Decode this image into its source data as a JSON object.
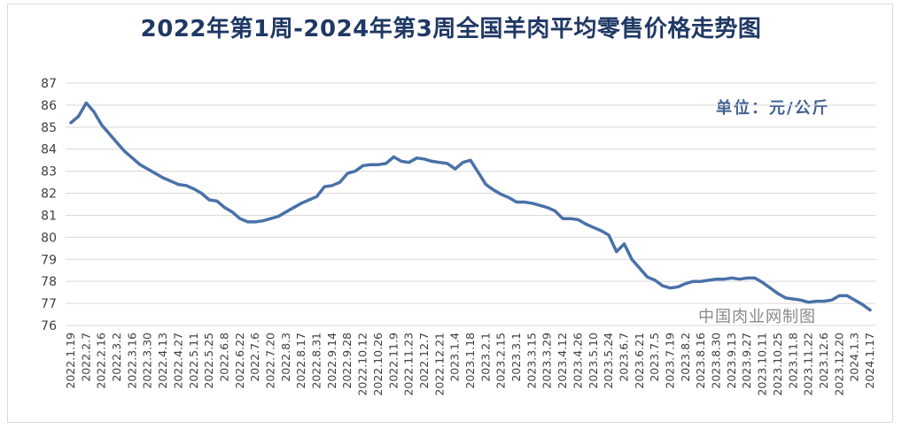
{
  "chart_data": {
    "type": "line",
    "title": "2022年第1周-2024年第3周全国羊肉平均零售价格走势图",
    "unit_label": "单位：元/公斤",
    "source_label": "中国肉业网制图",
    "ylim": [
      76,
      87
    ],
    "y_ticks": [
      76,
      77,
      78,
      79,
      80,
      81,
      82,
      83,
      84,
      85,
      86,
      87
    ],
    "grid": true,
    "x_tick_labels": [
      "2022.1.19",
      "2022.2.7",
      "2022.2.16",
      "2022.3.2",
      "2022.3.16",
      "2022.3.30",
      "2022.4.13",
      "2022.4.27",
      "2022.5.11",
      "2022.5.25",
      "2022.6.8",
      "2022.6.22",
      "2022.7.6",
      "2022.7.20",
      "2022.8.3",
      "2022.8.17",
      "2022.8.31",
      "2022.9.14",
      "2022.9.28",
      "2022.10.12",
      "2022.10.26",
      "2022.11.9",
      "2022.11.23",
      "2022.12.7",
      "2022.12.21",
      "2023.1.4",
      "2023.1.18",
      "2023.2.1",
      "2023.2.15",
      "2023.3.1",
      "2023.3.15",
      "2023.3.29",
      "2023.4.12",
      "2023.4.26",
      "2023.5.10",
      "2023.5.24",
      "2023.6.7",
      "2023.6.21",
      "2023.7.5",
      "2023.7.19",
      "2023.8.2",
      "2023.8.16",
      "2023.8.30",
      "2023.9.13",
      "2023.9.27",
      "2023.10.11",
      "2023.10.25",
      "2023.11.8",
      "2023.11.22",
      "2023.12.6",
      "2023.12.20",
      "2024.1.3",
      "2024.1.17"
    ],
    "values": [
      85.2,
      85.5,
      86.1,
      85.7,
      85.1,
      84.7,
      84.3,
      83.9,
      83.6,
      83.3,
      83.1,
      82.9,
      82.7,
      82.55,
      82.4,
      82.35,
      82.2,
      82.0,
      81.7,
      81.65,
      81.35,
      81.15,
      80.85,
      80.7,
      80.7,
      80.75,
      80.85,
      80.95,
      81.15,
      81.35,
      81.55,
      81.7,
      81.85,
      82.3,
      82.35,
      82.5,
      82.9,
      83.0,
      83.25,
      83.3,
      83.3,
      83.35,
      83.65,
      83.45,
      83.4,
      83.6,
      83.55,
      83.45,
      83.4,
      83.35,
      83.1,
      83.4,
      83.5,
      82.95,
      82.4,
      82.15,
      81.95,
      81.8,
      81.6,
      81.6,
      81.55,
      81.45,
      81.35,
      81.2,
      80.85,
      80.85,
      80.8,
      80.6,
      80.45,
      80.3,
      80.1,
      79.35,
      79.7,
      79.0,
      78.6,
      78.2,
      78.05,
      77.8,
      77.7,
      77.75,
      77.9,
      78.0,
      78.0,
      78.05,
      78.1,
      78.1,
      78.15,
      78.1,
      78.15,
      78.15,
      77.95,
      77.7,
      77.45,
      77.25,
      77.2,
      77.15,
      77.05,
      77.1,
      77.1,
      77.15,
      77.35,
      77.35,
      77.15,
      76.95,
      76.7
    ],
    "colors": {
      "line": "#4a71a8",
      "grid": "#d9d9d9",
      "axis_text": "#404040",
      "title": "#1f3864"
    }
  }
}
